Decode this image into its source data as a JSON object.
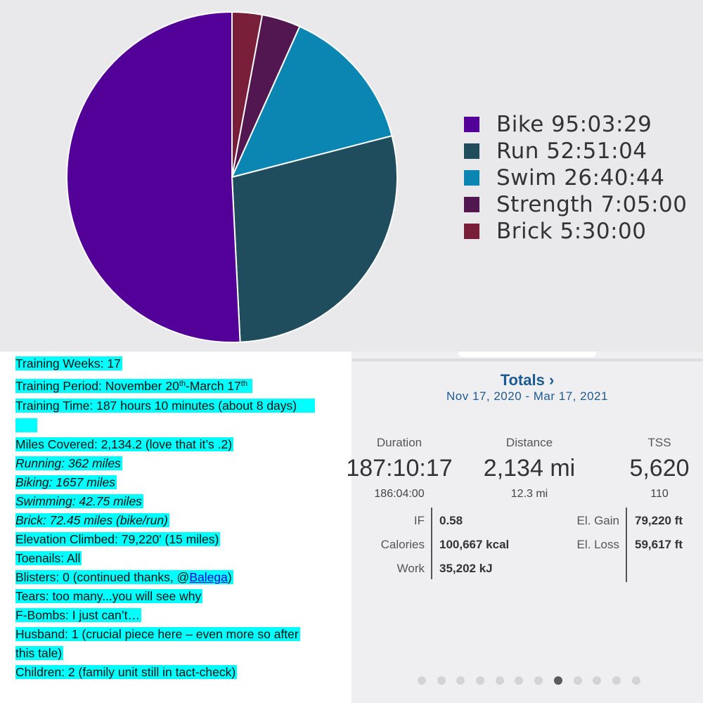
{
  "chart_data": {
    "type": "pie",
    "title": "",
    "series": [
      {
        "name": "Bike",
        "value": 95.058,
        "label": "Bike 95:03:29",
        "color": "#530099"
      },
      {
        "name": "Run",
        "value": 52.851,
        "label": "Run 52:51:04",
        "color": "#204d5e"
      },
      {
        "name": "Swim",
        "value": 26.679,
        "label": "Swim 26:40:44",
        "color": "#0b85b2"
      },
      {
        "name": "Strength",
        "value": 7.083,
        "label": "Strength 7:05:00",
        "color": "#521650"
      },
      {
        "name": "Brick",
        "value": 5.5,
        "label": "Brick 5:30:00",
        "color": "#7a1f3a"
      }
    ],
    "legend_position": "right"
  },
  "notes": {
    "training_weeks": "Training Weeks: 17",
    "period_prefix": "Training Period: November 20",
    "period_sup1": "th",
    "period_mid": "-March 17",
    "period_sup2": "th",
    "training_time": "Training Time: 187 hours 10 minutes (about 8 days)",
    "miles_covered": "Miles Covered: 2,134.2 (love that it’s .2)",
    "running": "Running: 362 miles",
    "biking": "Biking: 1657 miles",
    "swimming": "Swimming: 42.75 miles",
    "brick": "Brick: 72.45 miles (bike/run)",
    "elevation": "Elevation Climbed: 79,220' (15 miles)",
    "toenails": "Toenails: All",
    "blisters_prefix": "Blisters: 0 (continued thanks, @",
    "blisters_link": "Balega",
    "blisters_suffix": ")",
    "tears": "Tears: too many...you will see why",
    "fbombs": "F-Bombs: I just can’t…",
    "husband_1": "Husband: 1 (crucial piece here – even more so after",
    "husband_2": "this tale)",
    "children": "Children: 2 (family unit still in tact-check)"
  },
  "totals": {
    "title": "Totals",
    "chevron": "›",
    "date_range": "Nov 17, 2020 - Mar 17, 2021",
    "duration": {
      "label": "Duration",
      "value": "187:10:17",
      "sub": "186:04:00"
    },
    "distance": {
      "label": "Distance",
      "value": "2,134 mi",
      "sub": "12.3 mi"
    },
    "tss": {
      "label": "TSS",
      "value": "5,620",
      "sub": "110"
    },
    "if": {
      "label": "IF",
      "value": "0.58"
    },
    "calories": {
      "label": "Calories",
      "value": "100,667 kcal"
    },
    "work": {
      "label": "Work",
      "value": "35,202 kJ"
    },
    "el_gain": {
      "label": "El. Gain",
      "value": "79,220 ft"
    },
    "el_loss": {
      "label": "El. Loss",
      "value": "59,617 ft"
    },
    "page_dots": 12,
    "active_dot": 7
  }
}
